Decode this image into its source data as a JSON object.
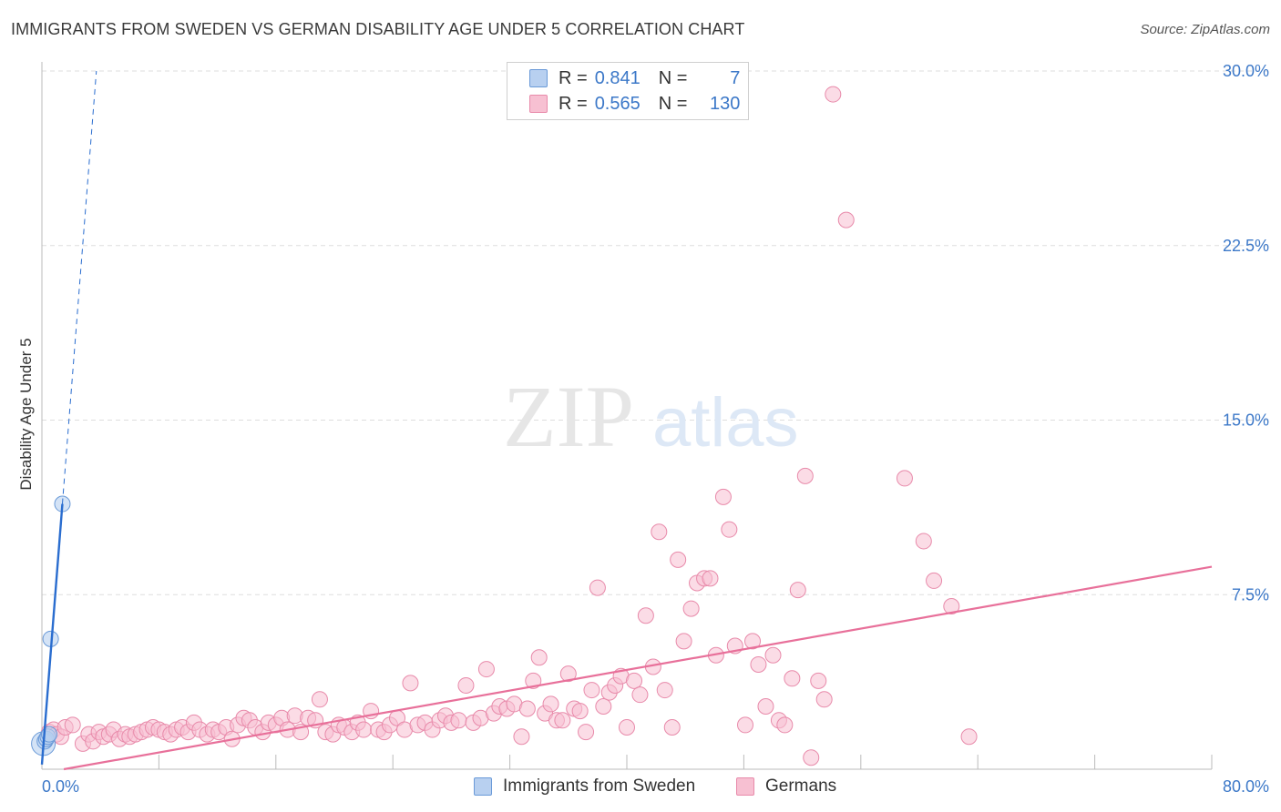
{
  "title": "IMMIGRANTS FROM SWEDEN VS GERMAN DISABILITY AGE UNDER 5 CORRELATION CHART",
  "source": "Source: ZipAtlas.com",
  "watermark": {
    "zip": "ZIP",
    "atlas": "atlas"
  },
  "legend_top": [
    {
      "r_label": "R =",
      "r_value": "0.841",
      "n_label": "N =",
      "n_value": "7"
    },
    {
      "r_label": "R =",
      "r_value": "0.565",
      "n_label": "N =",
      "n_value": "130"
    }
  ],
  "legend_bottom": [
    "Immigrants from Sweden",
    "Germans"
  ],
  "colors": {
    "sweden_fill": "#b8d0f0",
    "sweden_stroke": "#6a9ad8",
    "sweden_line": "#2a6dcf",
    "german_fill": "#f7c0d2",
    "german_stroke": "#e88aaa",
    "german_line": "#e8709a",
    "tick_text": "#3c78c8",
    "grid": "#dddddd"
  },
  "chart_data": {
    "type": "scatter",
    "title": "IMMIGRANTS FROM SWEDEN VS GERMAN DISABILITY AGE UNDER 5 CORRELATION CHART",
    "xlabel": "",
    "ylabel": "Disability Age Under 5",
    "xlim": [
      0,
      80
    ],
    "ylim": [
      0,
      30
    ],
    "x_tick_labels": {
      "left": "0.0%",
      "right": "80.0%"
    },
    "y_ticks": [
      {
        "value": 7.5,
        "label": "7.5%"
      },
      {
        "value": 15.0,
        "label": "15.0%"
      },
      {
        "value": 22.5,
        "label": "22.5%"
      },
      {
        "value": 30.0,
        "label": "30.0%"
      }
    ],
    "series": [
      {
        "name": "Immigrants from Sweden",
        "r": 0.841,
        "n": 7,
        "trend": {
          "x0": 0.0,
          "y0": 0.2,
          "x1": 1.4,
          "y1": 11.4,
          "dashed_to_y": 30
        },
        "points": [
          [
            0.1,
            1.1
          ],
          [
            0.2,
            1.2
          ],
          [
            0.3,
            1.3
          ],
          [
            0.4,
            1.4
          ],
          [
            0.5,
            1.5
          ],
          [
            0.6,
            5.6
          ],
          [
            1.4,
            11.4
          ]
        ]
      },
      {
        "name": "Germans",
        "r": 0.565,
        "n": 130,
        "trend": {
          "x0": 1.5,
          "y0": 0.0,
          "x1": 80.0,
          "y1": 8.7
        },
        "points": [
          [
            0.5,
            1.6
          ],
          [
            0.8,
            1.7
          ],
          [
            1.0,
            1.5
          ],
          [
            1.3,
            1.4
          ],
          [
            1.6,
            1.8
          ],
          [
            2.1,
            1.9
          ],
          [
            2.8,
            1.1
          ],
          [
            3.2,
            1.5
          ],
          [
            3.5,
            1.2
          ],
          [
            3.9,
            1.6
          ],
          [
            4.2,
            1.4
          ],
          [
            4.6,
            1.5
          ],
          [
            4.9,
            1.7
          ],
          [
            5.3,
            1.3
          ],
          [
            5.7,
            1.5
          ],
          [
            6.0,
            1.4
          ],
          [
            6.4,
            1.5
          ],
          [
            6.8,
            1.6
          ],
          [
            7.2,
            1.7
          ],
          [
            7.6,
            1.8
          ],
          [
            8.0,
            1.7
          ],
          [
            8.4,
            1.6
          ],
          [
            8.8,
            1.5
          ],
          [
            9.2,
            1.7
          ],
          [
            9.6,
            1.8
          ],
          [
            10.0,
            1.6
          ],
          [
            10.4,
            2.0
          ],
          [
            10.8,
            1.7
          ],
          [
            11.3,
            1.5
          ],
          [
            11.7,
            1.7
          ],
          [
            12.1,
            1.6
          ],
          [
            12.6,
            1.8
          ],
          [
            13.0,
            1.3
          ],
          [
            13.4,
            1.9
          ],
          [
            13.8,
            2.2
          ],
          [
            14.2,
            2.1
          ],
          [
            14.6,
            1.8
          ],
          [
            15.1,
            1.6
          ],
          [
            15.5,
            2.0
          ],
          [
            16.0,
            1.9
          ],
          [
            16.4,
            2.2
          ],
          [
            16.8,
            1.7
          ],
          [
            17.3,
            2.3
          ],
          [
            17.7,
            1.6
          ],
          [
            18.2,
            2.2
          ],
          [
            18.7,
            2.1
          ],
          [
            19.0,
            3.0
          ],
          [
            19.4,
            1.6
          ],
          [
            19.9,
            1.5
          ],
          [
            20.3,
            1.9
          ],
          [
            20.7,
            1.8
          ],
          [
            21.2,
            1.6
          ],
          [
            21.6,
            2.0
          ],
          [
            22.0,
            1.7
          ],
          [
            22.5,
            2.5
          ],
          [
            23.0,
            1.7
          ],
          [
            23.4,
            1.6
          ],
          [
            23.8,
            1.9
          ],
          [
            24.3,
            2.2
          ],
          [
            24.8,
            1.7
          ],
          [
            25.2,
            3.7
          ],
          [
            25.7,
            1.9
          ],
          [
            26.2,
            2.0
          ],
          [
            26.7,
            1.7
          ],
          [
            27.2,
            2.1
          ],
          [
            27.6,
            2.3
          ],
          [
            28.0,
            2.0
          ],
          [
            28.5,
            2.1
          ],
          [
            29.0,
            3.6
          ],
          [
            29.5,
            2.0
          ],
          [
            30.0,
            2.2
          ],
          [
            30.4,
            4.3
          ],
          [
            30.9,
            2.4
          ],
          [
            31.3,
            2.7
          ],
          [
            31.8,
            2.6
          ],
          [
            32.3,
            2.8
          ],
          [
            32.8,
            1.4
          ],
          [
            33.2,
            2.6
          ],
          [
            33.6,
            3.8
          ],
          [
            34.0,
            4.8
          ],
          [
            34.4,
            2.4
          ],
          [
            34.8,
            2.8
          ],
          [
            35.2,
            2.1
          ],
          [
            35.6,
            2.1
          ],
          [
            36.0,
            4.1
          ],
          [
            36.4,
            2.6
          ],
          [
            36.8,
            2.5
          ],
          [
            37.2,
            1.6
          ],
          [
            37.6,
            3.4
          ],
          [
            38.0,
            7.8
          ],
          [
            38.4,
            2.7
          ],
          [
            38.8,
            3.3
          ],
          [
            39.2,
            3.6
          ],
          [
            39.6,
            4.0
          ],
          [
            40.0,
            1.8
          ],
          [
            40.5,
            3.8
          ],
          [
            40.9,
            3.2
          ],
          [
            41.3,
            6.6
          ],
          [
            41.8,
            4.4
          ],
          [
            42.2,
            10.2
          ],
          [
            42.6,
            3.4
          ],
          [
            43.1,
            1.8
          ],
          [
            43.5,
            9.0
          ],
          [
            43.9,
            5.5
          ],
          [
            44.4,
            6.9
          ],
          [
            44.8,
            8.0
          ],
          [
            45.3,
            8.2
          ],
          [
            45.7,
            8.2
          ],
          [
            46.1,
            4.9
          ],
          [
            46.6,
            11.7
          ],
          [
            47.0,
            10.3
          ],
          [
            47.4,
            5.3
          ],
          [
            48.1,
            1.9
          ],
          [
            48.6,
            5.5
          ],
          [
            49.0,
            4.5
          ],
          [
            49.5,
            2.7
          ],
          [
            50.0,
            4.9
          ],
          [
            50.4,
            2.1
          ],
          [
            50.8,
            1.9
          ],
          [
            51.3,
            3.9
          ],
          [
            51.7,
            7.7
          ],
          [
            52.2,
            12.6
          ],
          [
            52.6,
            0.5
          ],
          [
            53.1,
            3.8
          ],
          [
            53.5,
            3.0
          ],
          [
            54.1,
            29.0
          ],
          [
            55.0,
            23.6
          ],
          [
            59.0,
            12.5
          ],
          [
            60.3,
            9.8
          ],
          [
            61.0,
            8.1
          ],
          [
            62.2,
            7.0
          ],
          [
            63.4,
            1.4
          ]
        ]
      }
    ]
  }
}
